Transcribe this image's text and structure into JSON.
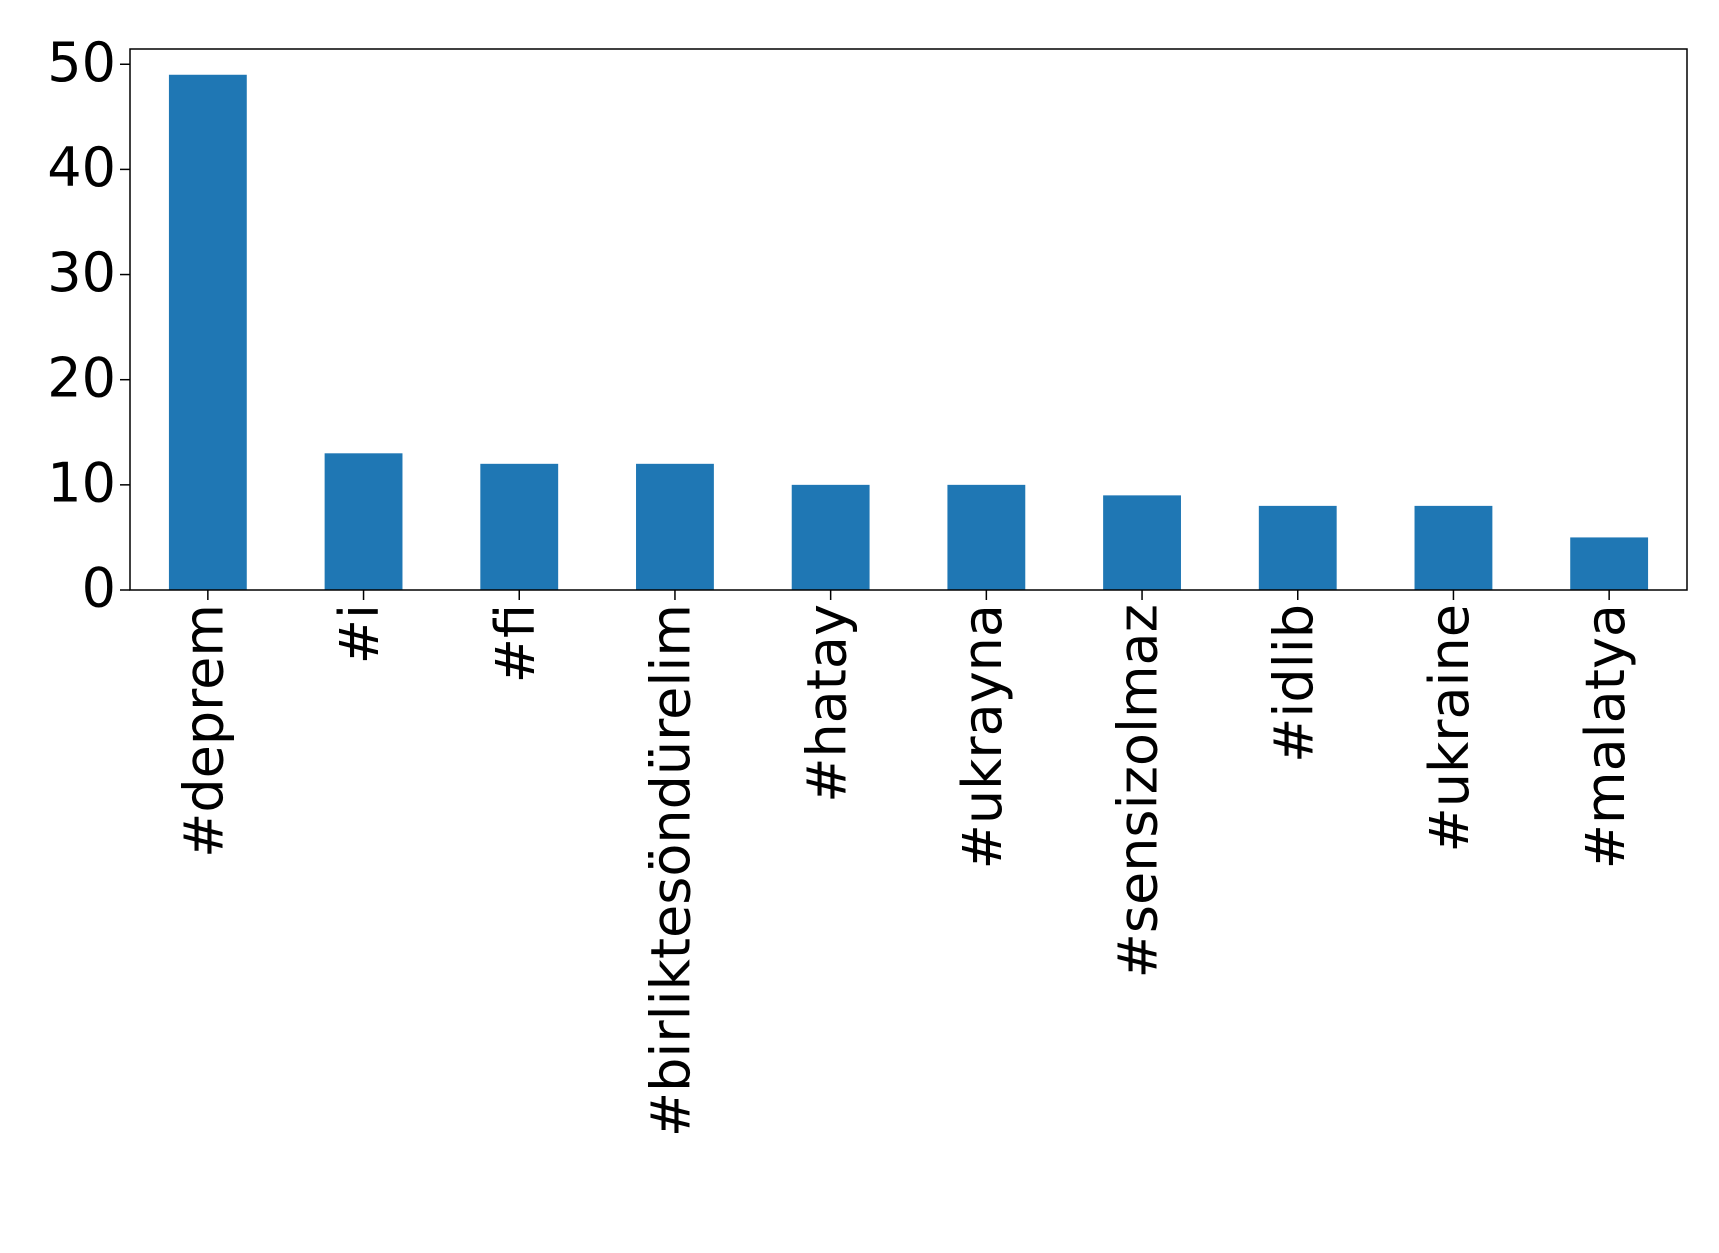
{
  "chart_data": {
    "type": "bar",
    "categories": [
      "#deprem",
      "#i",
      "#fi",
      "#birliktesöndürelim",
      "#hatay",
      "#ukrayna",
      "#sensizolmaz",
      "#idlib",
      "#ukraine",
      "#malatya"
    ],
    "values": [
      49,
      13,
      12,
      12,
      10,
      10,
      9,
      8,
      8,
      5
    ],
    "color": "#1f77b4",
    "ylim": [
      0,
      51.45
    ],
    "yticks": [
      0,
      10,
      20,
      30,
      40,
      50
    ],
    "grid": false
  }
}
